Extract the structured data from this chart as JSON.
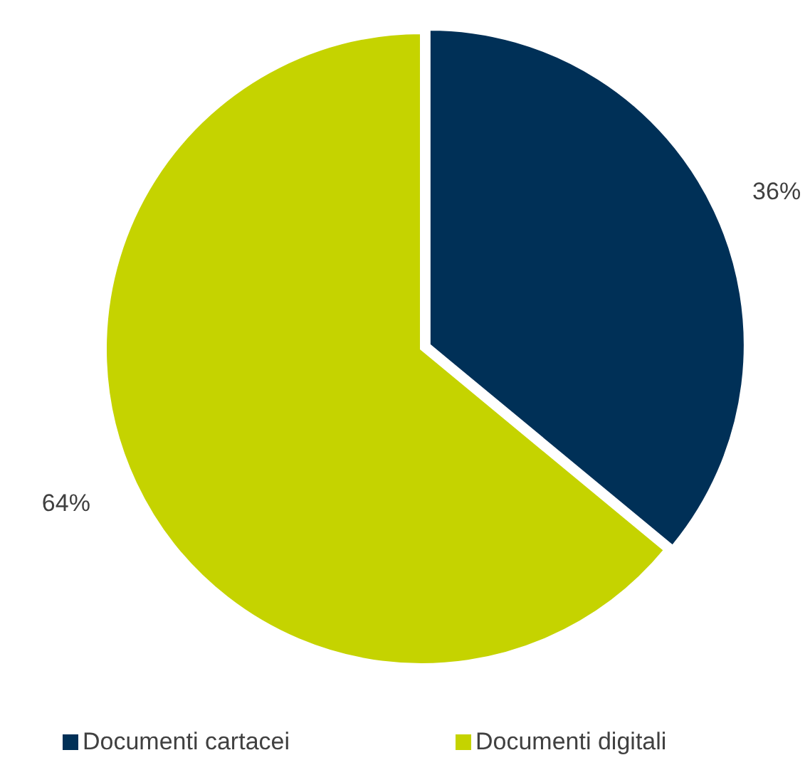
{
  "chart_data": {
    "type": "pie",
    "categories": [
      "Documenti cartacei",
      "Documenti digitali"
    ],
    "values": [
      36,
      64
    ],
    "colors": [
      "#003057",
      "#c5d300"
    ],
    "value_labels": [
      "36%",
      "64%"
    ],
    "legend": "bottom"
  }
}
